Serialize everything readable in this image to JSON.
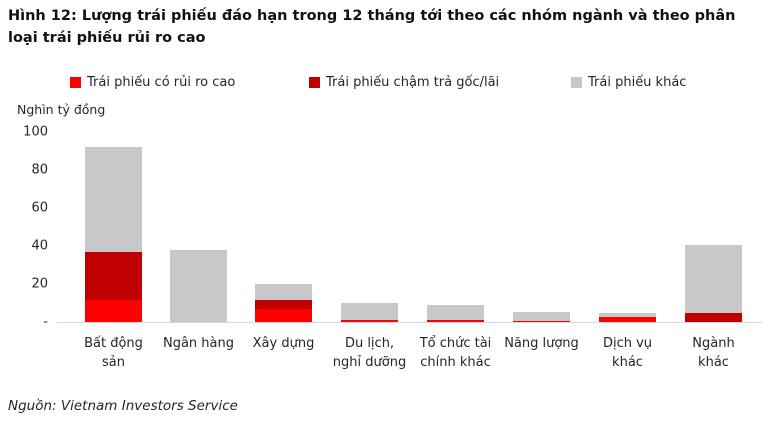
{
  "title": "Hình 12: Lượng trái phiếu đáo hạn trong 12 tháng tới theo các nhóm ngành và theo phân loại trái phiếu rủi ro cao",
  "source": "Nguồn: Vietnam Investors Service",
  "colors": {
    "high_risk_red": "#ff0000",
    "late_payment_dark_red": "#c00000",
    "other_gray": "#c8c8c8",
    "axis_line": "#d9d9d9",
    "text": "#262626"
  },
  "legend": [
    {
      "label": "Trái phiếu có rủi ro cao",
      "color": "#ff0000"
    },
    {
      "label": "Trái phiếu chậm trả gốc/lãi",
      "color": "#c00000"
    },
    {
      "label": "Trái phiếu khác",
      "color": "#c8c8c8"
    }
  ],
  "y_axis": {
    "unit_label": "Nghìn tỷ đồng",
    "tick_labels": [
      "100",
      "80",
      "60",
      "40",
      "20",
      "-"
    ],
    "tick_values": [
      100,
      80,
      60,
      40,
      20,
      0
    ]
  },
  "chart_data": {
    "type": "bar",
    "stacked": true,
    "title": "Lượng trái phiếu đáo hạn trong 12 tháng tới theo các nhóm ngành và theo phân loại trái phiếu rủi ro cao",
    "ylabel": "Nghìn tỷ đồng",
    "ylim": [
      0,
      100
    ],
    "ytick_step": 20,
    "grid": false,
    "legend_position": "top",
    "categories": [
      "Bất động sản",
      "Ngân hàng",
      "Xây dựng",
      "Du lịch, nghỉ dưỡng",
      "Tổ chức tài chính khác",
      "Năng lượng",
      "Dịch vụ khác",
      "Ngành khác"
    ],
    "categories_lines": [
      [
        "Bất động",
        "sản"
      ],
      [
        "Ngân hàng"
      ],
      [
        "Xây dựng"
      ],
      [
        "Du lịch,",
        "nghỉ dưỡng"
      ],
      [
        "Tổ chức tài",
        "chính khác"
      ],
      [
        "Năng lượng"
      ],
      [
        "Dịch vụ",
        "khác"
      ],
      [
        "Ngành",
        "khác"
      ]
    ],
    "series": [
      {
        "name": "Trái phiếu có rủi ro cao",
        "color": "#ff0000",
        "values": [
          11.5,
          0,
          7,
          1,
          1,
          0.5,
          2.5,
          0
        ]
      },
      {
        "name": "Trái phiếu chậm trả gốc/lãi",
        "color": "#c00000",
        "values": [
          25.5,
          0,
          4.5,
          0,
          0,
          0,
          0,
          4.5
        ]
      },
      {
        "name": "Trái phiếu khác",
        "color": "#c8c8c8",
        "values": [
          55,
          38,
          8.5,
          9,
          8,
          5,
          2,
          36
        ]
      }
    ],
    "totals": [
      92,
      38,
      20,
      10,
      9,
      5.5,
      4.5,
      40.5
    ]
  }
}
